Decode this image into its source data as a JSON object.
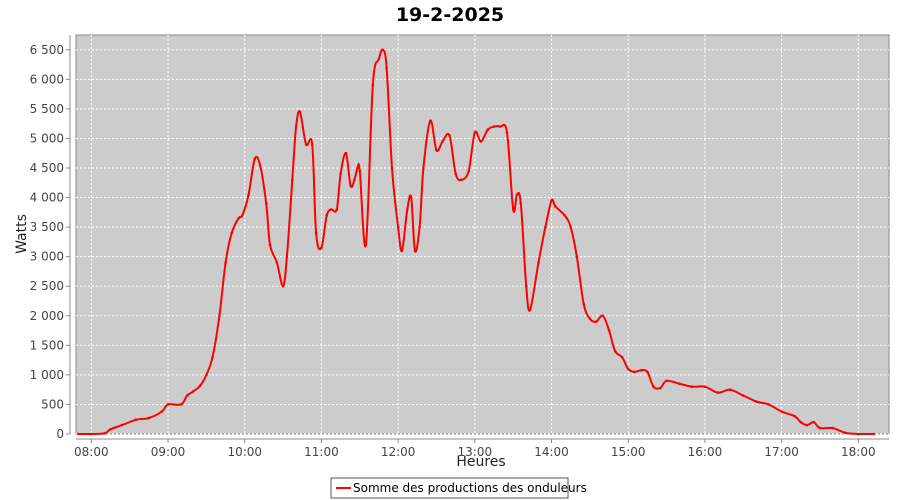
{
  "chart_data": {
    "type": "line",
    "title": "19-2-2025",
    "xlabel": "Heures",
    "ylabel": "Watts",
    "xlim": [
      7.8,
      18.4
    ],
    "ylim": [
      0,
      6750
    ],
    "x_ticks": [
      8,
      9,
      10,
      11,
      12,
      13,
      14,
      15,
      16,
      17,
      18
    ],
    "x_tick_labels": [
      "08:00",
      "09:00",
      "10:00",
      "11:00",
      "12:00",
      "13:00",
      "14:00",
      "15:00",
      "16:00",
      "17:00",
      "18:00"
    ],
    "y_ticks": [
      0,
      500,
      1000,
      1500,
      2000,
      2500,
      3000,
      3500,
      4000,
      4500,
      5000,
      5500,
      6000,
      6500
    ],
    "y_tick_labels": [
      "0",
      "500",
      "1 000",
      "1 500",
      "2 000",
      "2 500",
      "3 000",
      "3 500",
      "4 000",
      "4 500",
      "5 000",
      "5 500",
      "6 000",
      "6 500"
    ],
    "grid": true,
    "background": "#cccccc",
    "legend_position": "bottom-center",
    "series": [
      {
        "name": "Somme des productions des onduleurs",
        "color": "#ff0000",
        "x": [
          7.83,
          8.0,
          8.17,
          8.25,
          8.4,
          8.58,
          8.75,
          8.92,
          9.0,
          9.17,
          9.25,
          9.33,
          9.42,
          9.5,
          9.58,
          9.67,
          9.75,
          9.83,
          9.92,
          9.97,
          10.05,
          10.13,
          10.2,
          10.28,
          10.33,
          10.42,
          10.5,
          10.55,
          10.62,
          10.67,
          10.72,
          10.8,
          10.88,
          10.93,
          11.0,
          11.07,
          11.13,
          11.2,
          11.25,
          11.32,
          11.38,
          11.43,
          11.47,
          11.5,
          11.58,
          11.67,
          11.75,
          11.8,
          11.85,
          11.92,
          12.0,
          12.05,
          12.12,
          12.17,
          12.22,
          12.28,
          12.33,
          12.42,
          12.5,
          12.58,
          12.67,
          12.75,
          12.83,
          12.92,
          13.0,
          13.08,
          13.17,
          13.25,
          13.33,
          13.42,
          13.5,
          13.55,
          13.6,
          13.67,
          13.72,
          13.83,
          13.92,
          14.0,
          14.05,
          14.17,
          14.25,
          14.33,
          14.42,
          14.5,
          14.58,
          14.67,
          14.75,
          14.83,
          14.92,
          15.0,
          15.08,
          15.17,
          15.25,
          15.33,
          15.42,
          15.5,
          15.67,
          15.83,
          16.0,
          16.17,
          16.33,
          16.5,
          16.67,
          16.83,
          17.0,
          17.17,
          17.25,
          17.33,
          17.42,
          17.5,
          17.67,
          17.83,
          18.0,
          18.2
        ],
        "y": [
          0,
          0,
          10,
          80,
          150,
          240,
          270,
          380,
          500,
          500,
          650,
          720,
          820,
          1000,
          1300,
          2000,
          2900,
          3400,
          3650,
          3700,
          4050,
          4650,
          4550,
          3900,
          3200,
          2900,
          2500,
          3000,
          4300,
          5200,
          5450,
          4900,
          4900,
          3400,
          3150,
          3700,
          3800,
          3800,
          4400,
          4750,
          4200,
          4300,
          4500,
          4450,
          3200,
          5900,
          6350,
          6500,
          6200,
          4500,
          3500,
          3100,
          3800,
          4000,
          3100,
          3500,
          4500,
          5300,
          4800,
          4950,
          5050,
          4400,
          4300,
          4450,
          5100,
          4950,
          5150,
          5200,
          5200,
          5100,
          3800,
          4050,
          3900,
          2500,
          2100,
          2900,
          3500,
          3950,
          3850,
          3700,
          3500,
          3000,
          2200,
          1950,
          1900,
          2000,
          1750,
          1400,
          1300,
          1100,
          1050,
          1080,
          1050,
          800,
          780,
          900,
          850,
          800,
          800,
          700,
          750,
          650,
          550,
          500,
          380,
          300,
          200,
          150,
          200,
          100,
          100,
          20,
          0,
          0
        ]
      }
    ]
  }
}
